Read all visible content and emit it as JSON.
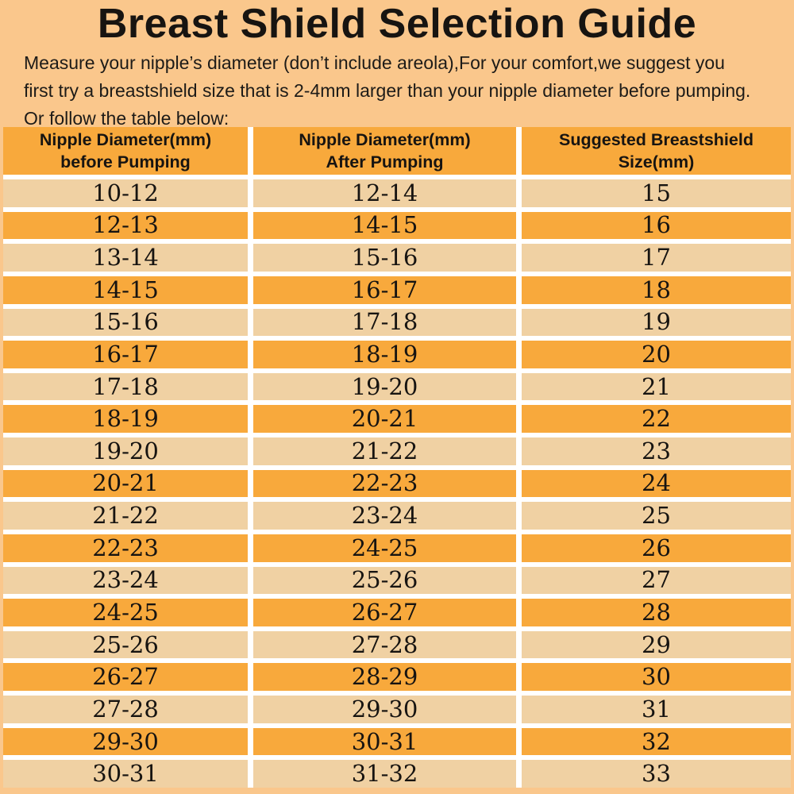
{
  "title": "Breast Shield Selection Guide",
  "intro": {
    "line1": "Measure your nipple’s diameter   (don’t include areola),For your comfort,we suggest you",
    "line2": "first try a breastshield size that is 2-4mm larger than your nipple diameter before pumping.",
    "line3": "Or follow the table below:"
  },
  "colors": {
    "page_bg": "#FAC78C",
    "row_orange": "#F8A93C",
    "row_light": "#F0D1A3",
    "gap_white": "#FFFFFF",
    "text": "#171411"
  },
  "table": {
    "headers": [
      {
        "line1": "Nipple Diameter(mm)",
        "line2": "before Pumping"
      },
      {
        "line1": "Nipple Diameter(mm)",
        "line2": "After Pumping"
      },
      {
        "line1": "Suggested Breastshield",
        "line2": "Size(mm)"
      }
    ],
    "rows": [
      [
        "10-12",
        "12-14",
        "15"
      ],
      [
        "12-13",
        "14-15",
        "16"
      ],
      [
        "13-14",
        "15-16",
        "17"
      ],
      [
        "14-15",
        "16-17",
        "18"
      ],
      [
        "15-16",
        "17-18",
        "19"
      ],
      [
        "16-17",
        "18-19",
        "20"
      ],
      [
        "17-18",
        "19-20",
        "21"
      ],
      [
        "18-19",
        "20-21",
        "22"
      ],
      [
        "19-20",
        "21-22",
        "23"
      ],
      [
        "20-21",
        "22-23",
        "24"
      ],
      [
        "21-22",
        "23-24",
        "25"
      ],
      [
        "22-23",
        "24-25",
        "26"
      ],
      [
        "23-24",
        "25-26",
        "27"
      ],
      [
        "24-25",
        "26-27",
        "28"
      ],
      [
        "25-26",
        "27-28",
        "29"
      ],
      [
        "26-27",
        "28-29",
        "30"
      ],
      [
        "27-28",
        "29-30",
        "31"
      ],
      [
        "29-30",
        "30-31",
        "32"
      ],
      [
        "30-31",
        "31-32",
        "33"
      ]
    ]
  }
}
